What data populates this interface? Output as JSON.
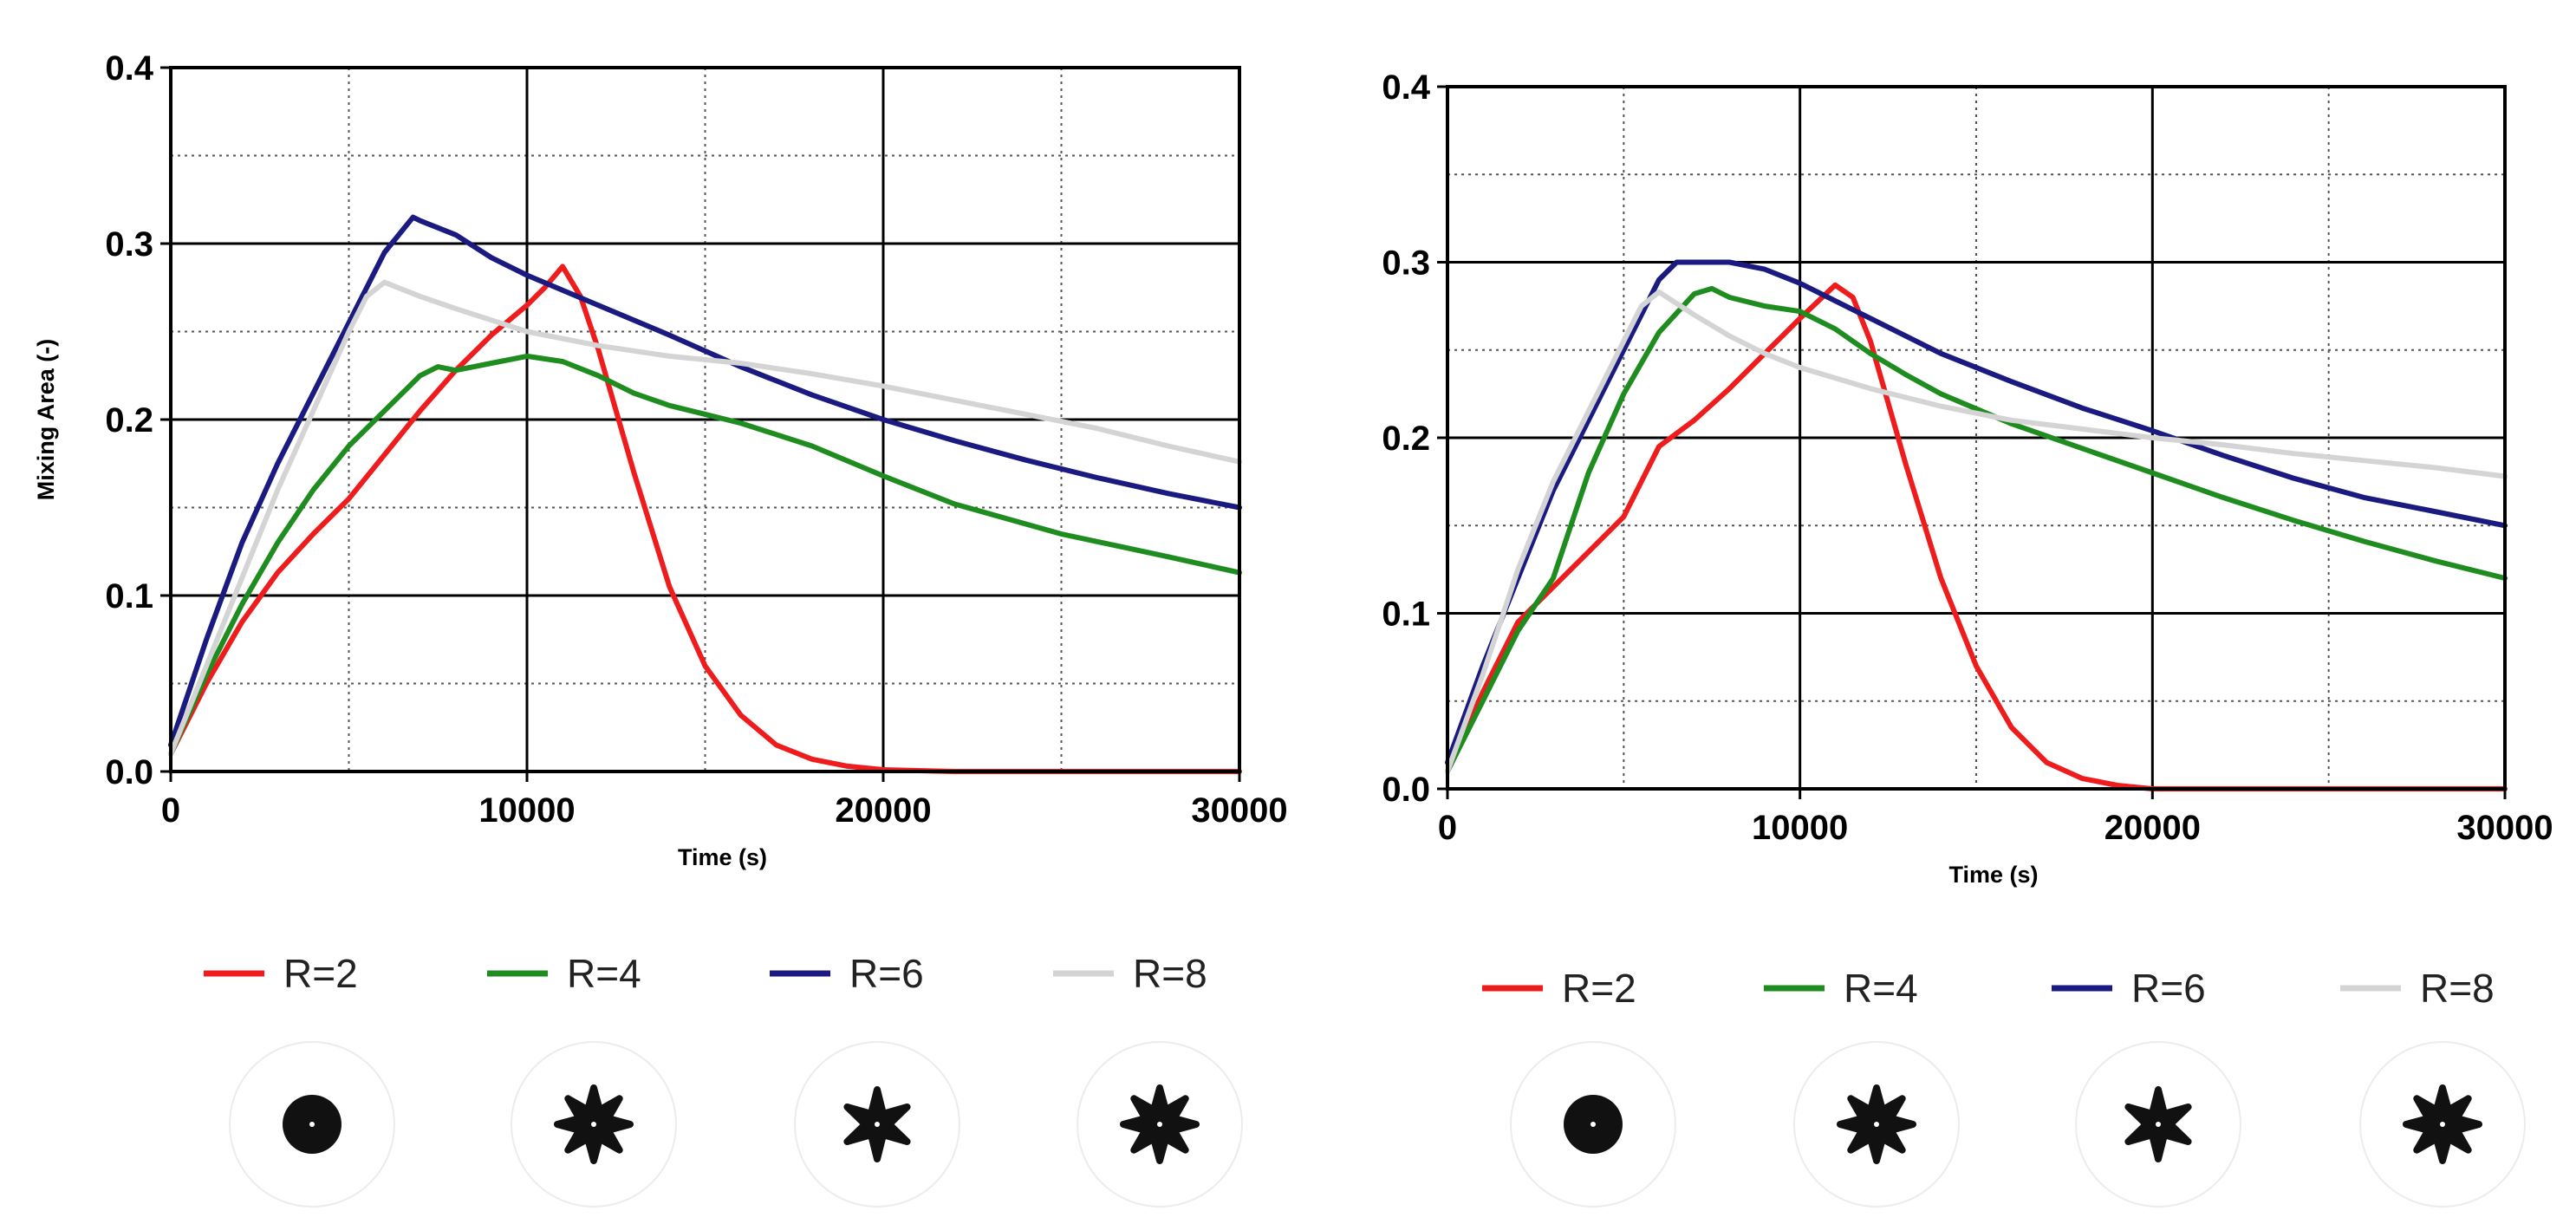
{
  "colors": {
    "R=2": "#ee1c1c",
    "R=4": "#1f8c1f",
    "R=6": "#1a1a80",
    "R=8": "#d4d4d4",
    "grid_major": "#000000",
    "grid_minor": "#555555"
  },
  "chart_data": [
    {
      "type": "line",
      "title": "",
      "xlabel": "Time (s)",
      "ylabel": "Mixing Area (-)",
      "xlim": [
        0,
        30000
      ],
      "ylim": [
        0,
        0.4
      ],
      "xticks": [
        "0",
        "10000",
        "20000",
        "30000"
      ],
      "yticks": [
        "0.0",
        "0.1",
        "0.2",
        "0.3",
        "0.4"
      ],
      "grid": "major solid, minor dotted",
      "legend_position": "bottom",
      "series": [
        {
          "name": "R=2",
          "color": "#ee1c1c",
          "x": [
            0,
            500,
            1000,
            2000,
            3000,
            4000,
            5000,
            6000,
            7000,
            8000,
            9000,
            10000,
            10500,
            11000,
            11500,
            12000,
            13000,
            14000,
            15000,
            16000,
            17000,
            18000,
            19000,
            20000,
            22000,
            25000,
            30000
          ],
          "y": [
            0.01,
            0.03,
            0.05,
            0.085,
            0.113,
            0.135,
            0.155,
            0.18,
            0.205,
            0.228,
            0.248,
            0.265,
            0.275,
            0.287,
            0.27,
            0.24,
            0.17,
            0.105,
            0.06,
            0.032,
            0.015,
            0.007,
            0.003,
            0.001,
            0.0,
            0.0,
            0.0
          ]
        },
        {
          "name": "R=4",
          "color": "#1f8c1f",
          "x": [
            0,
            1000,
            2000,
            3000,
            4000,
            5000,
            6000,
            7000,
            7500,
            8000,
            9000,
            10000,
            11000,
            12000,
            13000,
            14000,
            15000,
            16000,
            18000,
            20000,
            22000,
            25000,
            28000,
            30000
          ],
          "y": [
            0.01,
            0.055,
            0.095,
            0.13,
            0.16,
            0.185,
            0.205,
            0.225,
            0.23,
            0.228,
            0.232,
            0.236,
            0.233,
            0.225,
            0.215,
            0.208,
            0.203,
            0.198,
            0.185,
            0.168,
            0.152,
            0.135,
            0.122,
            0.113
          ]
        },
        {
          "name": "R=6",
          "color": "#1a1a80",
          "x": [
            0,
            1000,
            2000,
            3000,
            4000,
            5000,
            6000,
            6800,
            7000,
            8000,
            9000,
            10000,
            12000,
            14000,
            16000,
            18000,
            20000,
            22000,
            24000,
            26000,
            28000,
            30000
          ],
          "y": [
            0.015,
            0.075,
            0.13,
            0.175,
            0.215,
            0.255,
            0.295,
            0.315,
            0.313,
            0.305,
            0.292,
            0.282,
            0.265,
            0.248,
            0.23,
            0.214,
            0.2,
            0.188,
            0.177,
            0.167,
            0.158,
            0.15
          ]
        },
        {
          "name": "R=8",
          "color": "#d4d4d4",
          "x": [
            0,
            1000,
            2000,
            3000,
            4000,
            5000,
            5500,
            6000,
            7000,
            8000,
            10000,
            12000,
            14000,
            16000,
            18000,
            20000,
            22000,
            24000,
            26000,
            28000,
            30000
          ],
          "y": [
            0.01,
            0.06,
            0.11,
            0.16,
            0.205,
            0.25,
            0.27,
            0.278,
            0.27,
            0.263,
            0.25,
            0.242,
            0.236,
            0.232,
            0.226,
            0.219,
            0.211,
            0.203,
            0.195,
            0.185,
            0.176
          ]
        }
      ]
    },
    {
      "type": "line",
      "title": "",
      "xlabel": "Time (s)",
      "ylabel": "",
      "xlim": [
        0,
        30000
      ],
      "ylim": [
        0,
        0.4
      ],
      "xticks": [
        "0",
        "10000",
        "20000",
        "30000"
      ],
      "yticks": [
        "0.0",
        "0.1",
        "0.2",
        "0.3",
        "0.4"
      ],
      "grid": "major solid, minor dotted",
      "legend_position": "bottom",
      "series": [
        {
          "name": "R=2",
          "color": "#ee1c1c",
          "x": [
            0,
            1000,
            2000,
            3000,
            4000,
            5000,
            6000,
            7000,
            8000,
            9000,
            10000,
            11000,
            11500,
            12000,
            13000,
            14000,
            15000,
            16000,
            17000,
            18000,
            19000,
            20000,
            22000,
            25000,
            30000
          ],
          "y": [
            0.01,
            0.055,
            0.095,
            0.115,
            0.135,
            0.155,
            0.195,
            0.21,
            0.228,
            0.248,
            0.268,
            0.287,
            0.28,
            0.255,
            0.185,
            0.12,
            0.07,
            0.035,
            0.015,
            0.006,
            0.002,
            0.0,
            0.0,
            0.0,
            0.0
          ]
        },
        {
          "name": "R=4",
          "color": "#1f8c1f",
          "x": [
            0,
            1000,
            2000,
            3000,
            4000,
            5000,
            6000,
            7000,
            7500,
            8000,
            9000,
            10000,
            11000,
            12000,
            13000,
            14000,
            16000,
            18000,
            20000,
            22000,
            24000,
            26000,
            28000,
            30000
          ],
          "y": [
            0.01,
            0.05,
            0.09,
            0.12,
            0.18,
            0.225,
            0.26,
            0.282,
            0.285,
            0.28,
            0.275,
            0.272,
            0.262,
            0.248,
            0.236,
            0.225,
            0.208,
            0.194,
            0.18,
            0.166,
            0.153,
            0.141,
            0.13,
            0.12
          ]
        },
        {
          "name": "R=6",
          "color": "#1a1a80",
          "x": [
            0,
            1000,
            2000,
            3000,
            4000,
            5000,
            6000,
            6500,
            7000,
            8000,
            9000,
            10000,
            12000,
            14000,
            16000,
            18000,
            20000,
            22000,
            24000,
            26000,
            28000,
            30000
          ],
          "y": [
            0.015,
            0.07,
            0.12,
            0.17,
            0.21,
            0.25,
            0.29,
            0.3,
            0.3,
            0.3,
            0.296,
            0.288,
            0.268,
            0.248,
            0.232,
            0.217,
            0.204,
            0.19,
            0.177,
            0.166,
            0.158,
            0.15
          ]
        },
        {
          "name": "R=8",
          "color": "#d4d4d4",
          "x": [
            0,
            1000,
            2000,
            3000,
            4000,
            5000,
            5500,
            6000,
            7000,
            8000,
            9000,
            10000,
            12000,
            14000,
            16000,
            18000,
            20000,
            22000,
            24000,
            26000,
            28000,
            30000
          ],
          "y": [
            0.01,
            0.065,
            0.125,
            0.175,
            0.215,
            0.255,
            0.275,
            0.283,
            0.27,
            0.258,
            0.248,
            0.24,
            0.228,
            0.218,
            0.21,
            0.205,
            0.2,
            0.196,
            0.191,
            0.187,
            0.183,
            0.178
          ]
        }
      ]
    }
  ],
  "legends": [
    {
      "items": [
        {
          "label": "R=2",
          "color": "#ee1c1c"
        },
        {
          "label": "R=4",
          "color": "#1f8c1f"
        },
        {
          "label": "R=6",
          "color": "#1a1a80"
        },
        {
          "label": "R=8",
          "color": "#d4d4d4"
        }
      ]
    },
    {
      "items": [
        {
          "label": "R=2",
          "color": "#ee1c1c"
        },
        {
          "label": "R=4",
          "color": "#1f8c1f"
        },
        {
          "label": "R=6",
          "color": "#1a1a80"
        },
        {
          "label": "R=8",
          "color": "#d4d4d4"
        }
      ]
    }
  ],
  "shape_icons": [
    {
      "name": "R=2",
      "shape": "disc",
      "lobes": 0
    },
    {
      "name": "R=4",
      "shape": "star",
      "lobes": 8
    },
    {
      "name": "R=6",
      "shape": "star",
      "lobes": 6
    },
    {
      "name": "R=8",
      "shape": "star",
      "lobes": 8
    }
  ]
}
